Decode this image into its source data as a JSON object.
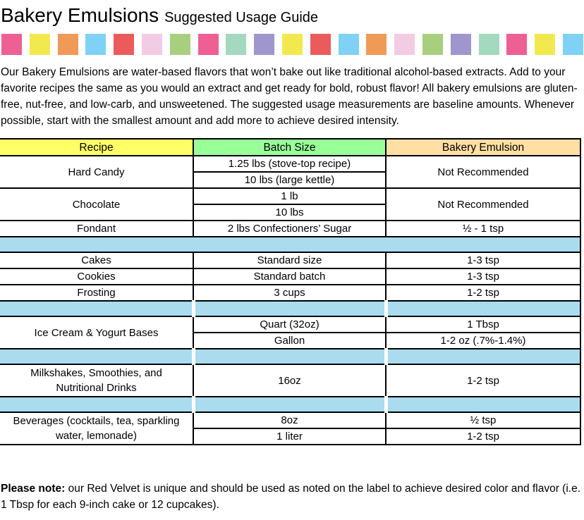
{
  "title": {
    "main": "Bakery Emulsions",
    "sub": "Suggested Usage Guide"
  },
  "palette": {
    "colors": [
      "#EE5F94",
      "#F2E94E",
      "#F09A58",
      "#7FD1F5",
      "#EC5B5B",
      "#F2CCE2",
      "#A8CF7E",
      "#EE5F94",
      "#A3D9BF",
      "#9E96CC",
      "#F2E94E",
      "#EC5B5B",
      "#7FD1F5",
      "#F09A58",
      "#F2CCE2",
      "#A8CF7E",
      "#9E96CC",
      "#A3D9BF",
      "#EE5F94",
      "#F2E94E",
      "#7FD1F5"
    ]
  },
  "intro": "Our Bakery Emulsions are water-based flavors that won’t bake out like traditional alcohol-based extracts. Add to your favorite recipes the same as you would an extract and get ready for bold, robust flavor! All bakery emulsions are gluten-free, nut-free, and low-carb, and unsweetened. The suggested usage measurements are baseline amounts. Whenever possible, start with the smallest amount and add more to achieve desired intensity.",
  "table": {
    "colors": {
      "recipe_bg": "#FFFF66",
      "batch_bg": "#99FF99",
      "emulsion_bg": "#FFDFA3",
      "spacer_bg": "#A9DCEE",
      "border": "#000000"
    },
    "header": {
      "recipe": "Recipe",
      "batch_size": "Batch Size",
      "bakery_emulsion": "Bakery Emulsion"
    },
    "rows": {
      "hard_candy": {
        "recipe": "Hard Candy",
        "batch1": "1.25 lbs (stove-top recipe)",
        "batch2": "10 lbs (large kettle)",
        "emulsion": "Not Recommended"
      },
      "chocolate": {
        "recipe": "Chocolate",
        "batch1": "1 lb",
        "batch2": "10 lbs",
        "emulsion": "Not Recommended"
      },
      "fondant": {
        "recipe": "Fondant",
        "batch": "2 lbs Confectioners’ Sugar",
        "emulsion": "½ - 1 tsp"
      },
      "cakes": {
        "recipe": "Cakes",
        "batch": "Standard size",
        "emulsion": "1-3 tsp"
      },
      "cookies": {
        "recipe": "Cookies",
        "batch": "Standard batch",
        "emulsion": "1-3 tsp"
      },
      "frosting": {
        "recipe": "Frosting",
        "batch": "3 cups",
        "emulsion": "1-2 tsp"
      },
      "ice_cream": {
        "recipe": "Ice Cream & Yogurt Bases",
        "batch1": "Quart (32oz)",
        "emulsion1": "1 Tbsp",
        "batch2": "Gallon",
        "emulsion2": "1-2 oz (.7%-1.4%)"
      },
      "milkshakes": {
        "recipe": "Milkshakes, Smoothies, and Nutritional Drinks",
        "batch": "16oz",
        "emulsion": "1-2 tsp"
      },
      "beverages": {
        "recipe": "Beverages (cocktails, tea, sparkling water, lemonade)",
        "batch1": "8oz",
        "emulsion1": "½ tsp",
        "batch2": "1 liter",
        "emulsion2": "1-2 tsp"
      }
    }
  },
  "note": {
    "label": "Please note:",
    "text": " our Red Velvet is unique and should be used as noted on the label to achieve desired color and flavor (i.e. 1 Tbsp for each 9-inch cake or 12 cupcakes)."
  }
}
